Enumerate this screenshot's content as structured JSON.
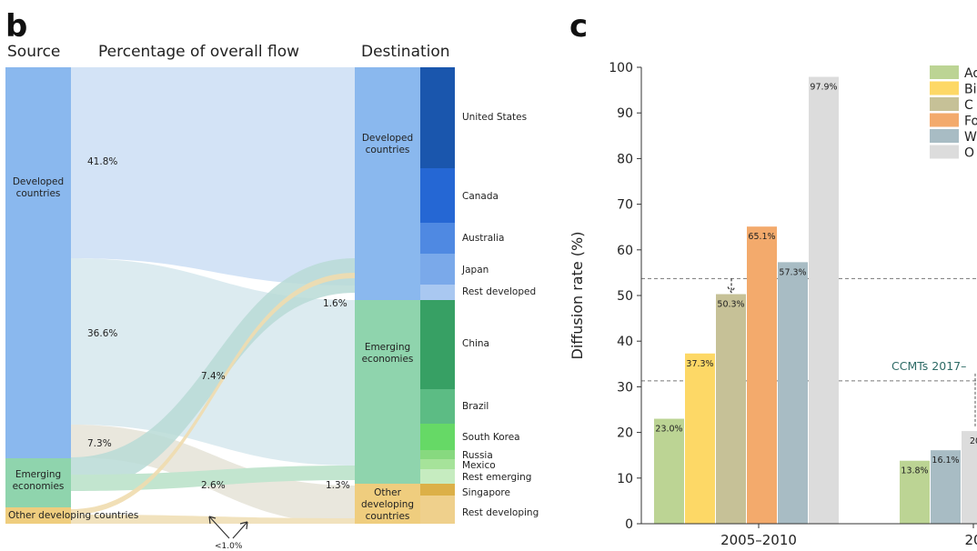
{
  "panel_b": {
    "letter": "b",
    "headers": {
      "source": "Source",
      "flow": "Percentage of overall flow",
      "destination": "Destination"
    },
    "source_nodes": [
      "Developed countries",
      "Emerging economies",
      "Other developing countries"
    ],
    "destination_groups": [
      "Developed countries",
      "Emerging economies",
      "Other developing countries"
    ],
    "destination_countries": [
      "United States",
      "Canada",
      "Australia",
      "Japan",
      "Rest developed",
      "China",
      "Brazil",
      "South Korea",
      "Russia",
      "Mexico",
      "Rest emerging",
      "Singapore",
      "Rest developing"
    ],
    "flow_labels": [
      "41.8%",
      "36.6%",
      "7.3%",
      "7.4%",
      "1.6%",
      "2.6%",
      "1.3%",
      "<1.0%"
    ],
    "colors": {
      "developed": "#8ab8ee",
      "emerging": "#8fd4ad",
      "other": "#efcd7e"
    }
  },
  "chart_data": {
    "type": "bar",
    "panel_letter": "c",
    "title": "",
    "xlabel": "",
    "ylabel": "Diffusion rate (%)",
    "ylim": [
      0,
      100
    ],
    "yticks": [
      "0",
      "10",
      "20",
      "30",
      "40",
      "50",
      "60",
      "70",
      "80",
      "90",
      "100"
    ],
    "categories": [
      "2005–2010",
      "20"
    ],
    "legend_entries": [
      "Ad",
      "Bi",
      "C",
      "Fo",
      "W",
      "O"
    ],
    "legend_colors": [
      "#bcd494",
      "#fdd866",
      "#c6c197",
      "#f3aa6c",
      "#a8bcc4",
      "#dcdcdc"
    ],
    "group1_values": [
      23.0,
      37.3,
      50.3,
      65.1,
      57.3,
      97.9
    ],
    "group1_labels": [
      "23.0%",
      "37.3%",
      "50.3%",
      "65.1%",
      "57.3%",
      "97.9%"
    ],
    "group2_values": [
      13.8,
      16.1,
      20.3
    ],
    "group2_labels": [
      "13.8%",
      "16.1%",
      "20."
    ],
    "reference_lines": [
      53.7,
      31.3
    ],
    "annotation": "CCMTs 2017–"
  }
}
